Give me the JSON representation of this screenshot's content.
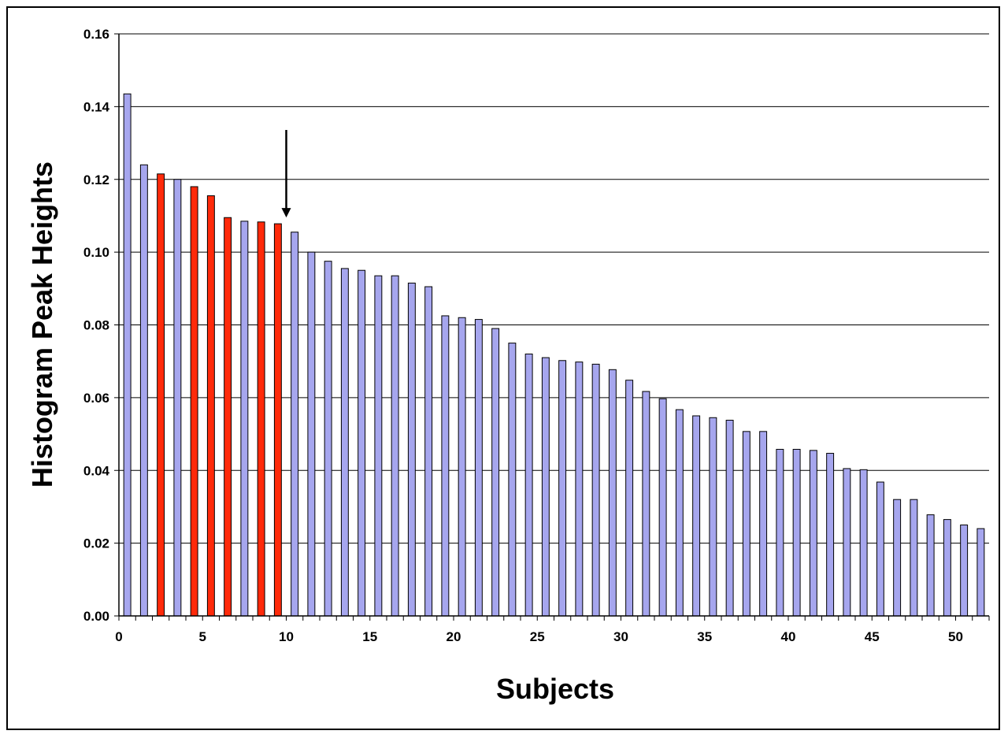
{
  "chart_data": {
    "type": "bar",
    "title": "",
    "xlabel": "Subjects",
    "ylabel": "Histogram Peak Heights",
    "xlim": [
      0,
      52
    ],
    "ylim": [
      0,
      0.16
    ],
    "x_ticks": [
      "0",
      "5",
      "10",
      "15",
      "20",
      "25",
      "30",
      "35",
      "40",
      "45",
      "50"
    ],
    "y_ticks": [
      "0.00",
      "0.02",
      "0.04",
      "0.06",
      "0.08",
      "0.10",
      "0.12",
      "0.14",
      "0.16"
    ],
    "grid": "horizontal",
    "legend": "none",
    "colors": {
      "default": "#a6a6ee",
      "highlight": "#ff2a0a",
      "border": "#000000"
    },
    "highlighted_subjects": [
      3,
      5,
      6,
      7,
      9,
      10
    ],
    "arrow_at_subject": 10,
    "values": [
      0.1435,
      0.124,
      0.1215,
      0.12,
      0.118,
      0.1155,
      0.1095,
      0.1085,
      0.1083,
      0.1078,
      0.1055,
      0.1,
      0.0975,
      0.0955,
      0.095,
      0.0935,
      0.0935,
      0.0915,
      0.0905,
      0.0825,
      0.082,
      0.0815,
      0.079,
      0.075,
      0.072,
      0.071,
      0.0702,
      0.0698,
      0.0692,
      0.0677,
      0.0648,
      0.0617,
      0.0597,
      0.0567,
      0.055,
      0.0545,
      0.0538,
      0.0507,
      0.0507,
      0.0458,
      0.0458,
      0.0455,
      0.0447,
      0.0405,
      0.0402,
      0.0368,
      0.032,
      0.032,
      0.0278,
      0.0265,
      0.025,
      0.024
    ]
  }
}
